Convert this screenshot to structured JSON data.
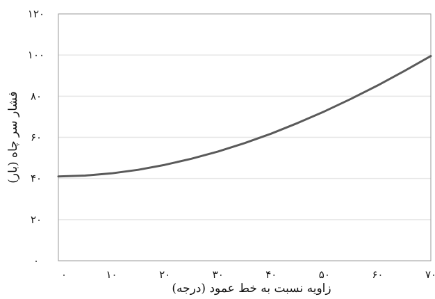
{
  "chart_data": {
    "type": "line",
    "title": "",
    "xlabel": "زاویه نسبت به خط عمود (درجه)",
    "ylabel": "فشار سر چاه (بار)",
    "xlim": [
      0,
      70
    ],
    "ylim": [
      0,
      120
    ],
    "x_ticks": [
      0,
      10,
      20,
      30,
      40,
      50,
      60,
      70
    ],
    "x_tick_labels": [
      "۰",
      "۱۰",
      "۲۰",
      "۳۰",
      "۴۰",
      "۵۰",
      "۶۰",
      "۷۰"
    ],
    "y_ticks": [
      0,
      20,
      40,
      60,
      80,
      100,
      120
    ],
    "y_tick_labels": [
      "۰",
      "۲۰",
      "۴۰",
      "۶۰",
      "۸۰",
      "۱۰۰",
      "۱۲۰"
    ],
    "grid": true,
    "legend": false,
    "colors": {
      "line": "#5a5a5a",
      "grid": "#e6e6e6",
      "frame": "#9a9a9a"
    },
    "series": [
      {
        "x": [
          0,
          5,
          10,
          15,
          20,
          25,
          30,
          35,
          40,
          45,
          50,
          55,
          60,
          65,
          70
        ],
        "y": [
          41,
          41.4,
          42.5,
          44.2,
          46.6,
          49.6,
          53.1,
          57.2,
          61.8,
          67,
          72.6,
          78.7,
          85.2,
          92.2,
          99.5
        ]
      }
    ]
  }
}
